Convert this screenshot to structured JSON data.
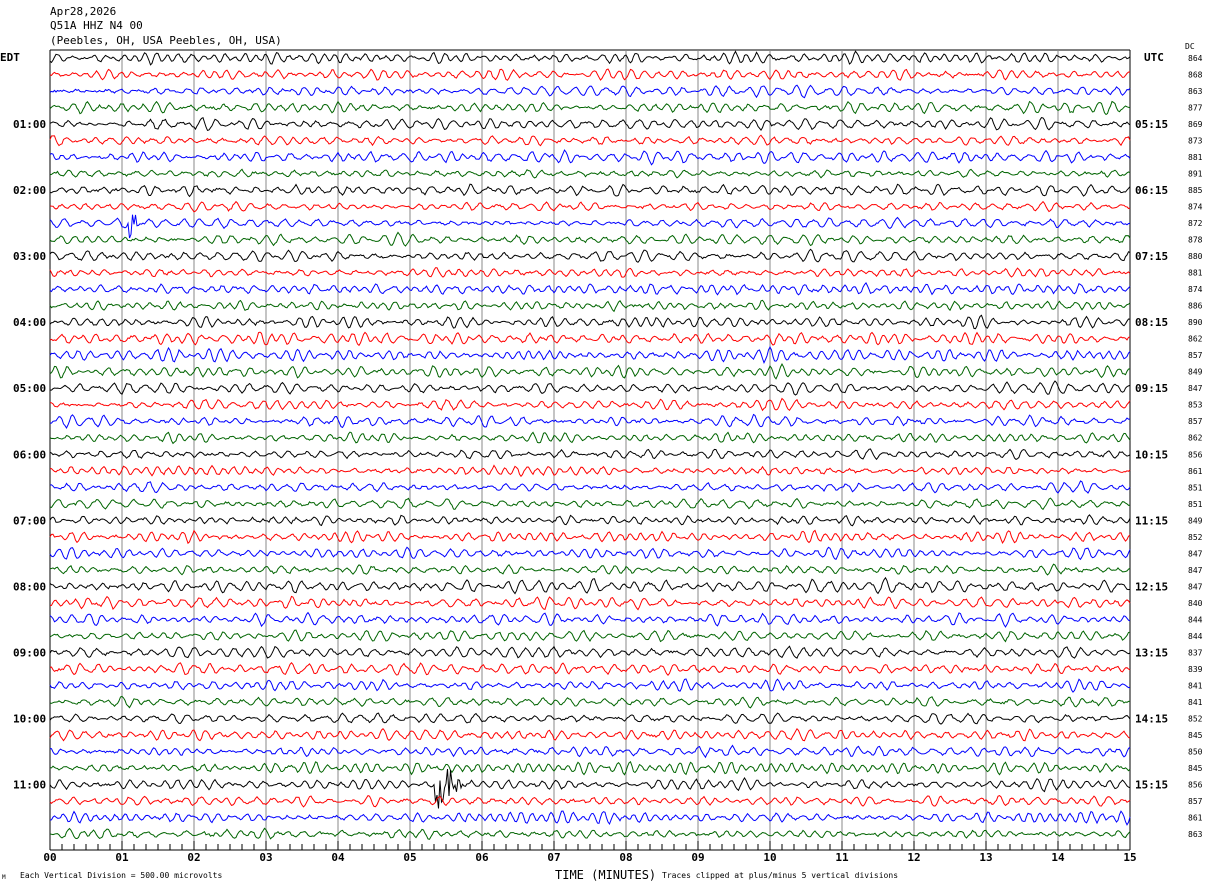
{
  "header": {
    "date": "Apr28,2026",
    "channel": "Q51A HHZ N4 00",
    "location": "(Peebles, OH, USA Peebles, OH, USA)"
  },
  "left_tz": "EDT",
  "right_tz": "UTC",
  "dc_label": "DC",
  "footer": {
    "scale": "Each Vertical Division =  500.00 microvolts",
    "xlabel": "TIME (MINUTES)",
    "clip_note": "Traces clipped at plus/minus 5 vertical divisions",
    "corner_mark": "M"
  },
  "chart_data": {
    "type": "line",
    "subtype": "helicorder",
    "xlabel": "TIME (MINUTES)",
    "xlim": [
      0,
      15
    ],
    "x_ticks": [
      "00",
      "01",
      "02",
      "03",
      "04",
      "05",
      "06",
      "07",
      "08",
      "09",
      "10",
      "11",
      "12",
      "13",
      "14",
      "15"
    ],
    "minor_tick_seconds": 10,
    "grid": true,
    "trace_colors": [
      "#000000",
      "#ff0000",
      "#0000ff",
      "#006400"
    ],
    "left_labels": [
      "01:00",
      "02:00",
      "03:00",
      "04:00",
      "05:00",
      "06:00",
      "07:00",
      "08:00",
      "09:00",
      "10:00",
      "11:00"
    ],
    "right_labels": [
      "05:15",
      "06:15",
      "07:15",
      "08:15",
      "09:15",
      "10:15",
      "11:15",
      "12:15",
      "13:15",
      "14:15",
      "15:15"
    ],
    "dc_offsets": [
      864,
      868,
      863,
      877,
      869,
      873,
      881,
      891,
      885,
      874,
      872,
      878,
      880,
      881,
      874,
      886,
      890,
      862,
      857,
      849,
      847,
      853,
      857,
      862,
      856,
      861,
      851,
      851,
      849,
      852,
      847,
      847,
      847,
      840,
      844,
      844,
      837,
      839,
      841,
      841,
      852,
      845,
      850,
      845,
      856,
      857,
      861,
      863
    ],
    "events": [
      {
        "row": 10,
        "minute": 1.1,
        "amplitude_div": 3.0,
        "duration_min": 0.25
      },
      {
        "row": 44,
        "minute": 5.35,
        "amplitude_div": 5.0,
        "duration_min": 0.6
      },
      {
        "row": 8,
        "minute": 7.8,
        "amplitude_div": 0.6,
        "duration_min": 0.15
      },
      {
        "row": 3,
        "minute": 14.15,
        "amplitude_div": 0.7,
        "duration_min": 0.2
      },
      {
        "row": 47,
        "minute": 2.15,
        "amplitude_div": 0.4,
        "duration_min": 0.3
      },
      {
        "row": 6,
        "minute": 13.15,
        "amplitude_div": 0.4,
        "duration_min": 0.1
      }
    ]
  }
}
